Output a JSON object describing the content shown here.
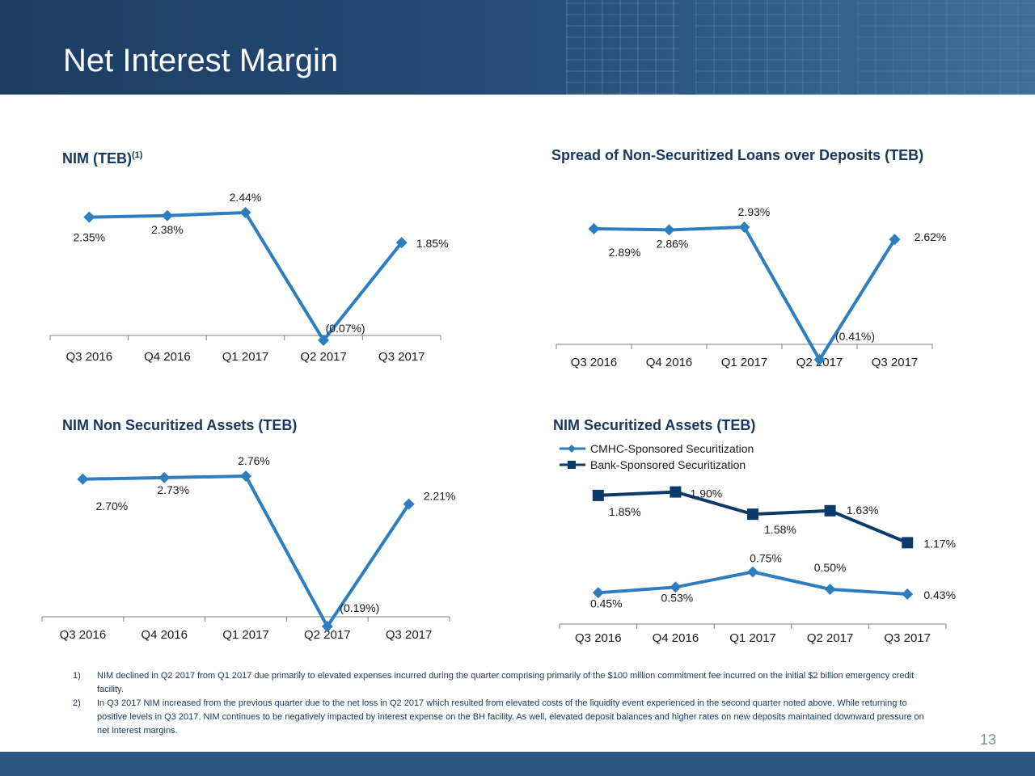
{
  "page": {
    "title": "Net Interest Margin",
    "page_number": "13",
    "footnotes": [
      {
        "num": "1)",
        "text": "NIM declined in Q2 2017 from Q1 2017 due primarily to elevated expenses incurred during the quarter comprising primarily of the $100 million commitment fee incurred on the initial $2 billion emergency credit facility."
      },
      {
        "num": "2)",
        "text": "In Q3 2017 NIM increased from the previous quarter due to the net loss in Q2 2017 which resulted from elevated costs of the liquidity event experienced in the second quarter noted above.  While returning to positive levels in Q3 2017, NIM continues to be negatively impacted by interest expense on the BH facility.  As well, elevated deposit balances and higher rates on new deposits maintained downward pressure on net interest margins."
      }
    ]
  },
  "colors": {
    "series_light": "#2e7dbf",
    "series_dark": "#0e3a6b",
    "axis": "#7f7f7f",
    "title": "#17375e"
  },
  "chart_data": [
    {
      "type": "line",
      "title": "NIM (TEB)",
      "title_sup": "(1)",
      "categories": [
        "Q3 2016",
        "Q4 2016",
        "Q1 2017",
        "Q2 2017",
        "Q3 2017"
      ],
      "series": [
        {
          "values": [
            2.35,
            2.38,
            2.44,
            -0.07,
            1.85
          ],
          "labels": [
            "2.35%",
            "2.38%",
            "2.44%",
            "(0.07%)",
            "1.85%"
          ],
          "marker": "diamond"
        }
      ],
      "ylim": [
        -0.07,
        2.44
      ]
    },
    {
      "type": "line",
      "title": "Spread of Non-Securitized Loans over Deposits (TEB)",
      "categories": [
        "Q3 2016",
        "Q4 2016",
        "Q1 2017",
        "Q2 2017",
        "Q3 2017"
      ],
      "series": [
        {
          "values": [
            2.89,
            2.86,
            2.93,
            -0.41,
            2.62
          ],
          "labels": [
            "2.89%",
            "2.86%",
            "2.93%",
            "(0.41%)",
            "2.62%"
          ],
          "marker": "diamond"
        }
      ],
      "ylim": [
        -0.41,
        2.93
      ]
    },
    {
      "type": "line",
      "title": "NIM Non Securitized Assets (TEB)",
      "categories": [
        "Q3 2016",
        "Q4 2016",
        "Q1 2017",
        "Q2 2017",
        "Q3 2017"
      ],
      "series": [
        {
          "values": [
            2.7,
            2.73,
            2.76,
            -0.19,
            2.21
          ],
          "labels": [
            "2.70%",
            "2.73%",
            "2.76%",
            "(0.19%)",
            "2.21%"
          ],
          "marker": "diamond"
        }
      ],
      "ylim": [
        -0.19,
        2.76
      ]
    },
    {
      "type": "line",
      "title": "NIM Securitized Assets (TEB)",
      "categories": [
        "Q3 2016",
        "Q4 2016",
        "Q1 2017",
        "Q2 2017",
        "Q3 2017"
      ],
      "legend": "top-left",
      "series": [
        {
          "name": "CMHC-Sponsored Securitization",
          "values": [
            0.45,
            0.53,
            0.75,
            0.5,
            0.43
          ],
          "labels": [
            "0.45%",
            "0.53%",
            "0.75%",
            "0.50%",
            "0.43%"
          ],
          "marker": "diamond"
        },
        {
          "name": "Bank-Sponsored Securitization",
          "values": [
            1.85,
            1.9,
            1.58,
            1.63,
            1.17
          ],
          "labels": [
            "1.85%",
            "1.90%",
            "1.58%",
            "1.63%",
            "1.17%"
          ],
          "marker": "square"
        }
      ],
      "ylim": [
        0.0,
        2.0
      ]
    }
  ]
}
